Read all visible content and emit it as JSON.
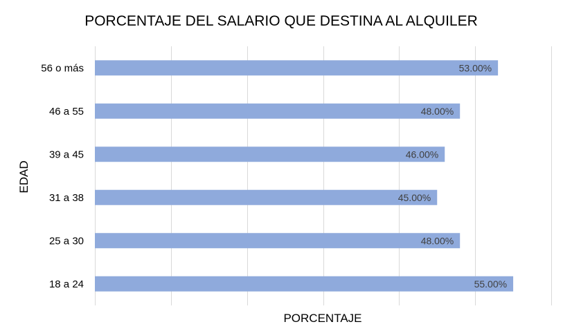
{
  "chart_data": {
    "type": "bar",
    "orientation": "horizontal",
    "title": "PORCENTAJE DEL SALARIO QUE DESTINA AL ALQUILER",
    "xlabel": "PORCENTAJE",
    "ylabel": "EDAD",
    "categories": [
      "56 o más",
      "46 a 55",
      "39 a 45",
      "31 a 38",
      "25 a 30",
      "18 a 24"
    ],
    "values": [
      53,
      48,
      46,
      45,
      48,
      55
    ],
    "data_labels": [
      "53.00%",
      "48.00%",
      "46.00%",
      "45.00%",
      "48.00%",
      "55.00%"
    ],
    "xlim": [
      0,
      60
    ],
    "x_tick_step": 10,
    "x_tick_labels_shown": false,
    "grid": true,
    "legend": "none",
    "bar_color": "#8faadc",
    "grid_color": "#d9d9d9",
    "label_color": "#404040"
  }
}
